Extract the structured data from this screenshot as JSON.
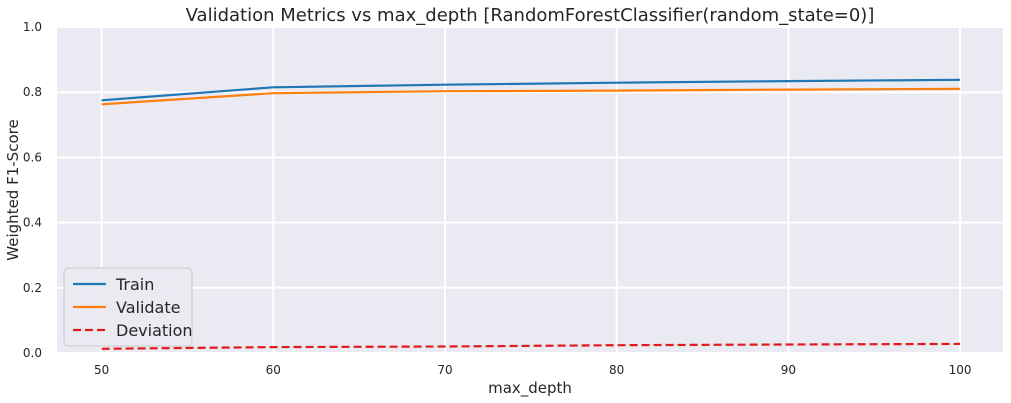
{
  "chart_data": {
    "type": "line",
    "title": "Validation Metrics vs max_depth [RandomForestClassifier(random_state=0)]",
    "xlabel": "max_depth",
    "ylabel": "Weighted F1-Score",
    "x": [
      50,
      60,
      70,
      80,
      90,
      100
    ],
    "xticks": [
      50,
      60,
      70,
      80,
      90,
      100
    ],
    "yticks": [
      0.0,
      0.2,
      0.4,
      0.6,
      0.8,
      1.0
    ],
    "xlim": [
      47.4,
      102.5
    ],
    "ylim": [
      0,
      1
    ],
    "grid": true,
    "legend_position": "lower-left",
    "series": [
      {
        "name": "Train",
        "color": "#1f77b4",
        "dash": "solid",
        "values": [
          0.775,
          0.815,
          0.823,
          0.829,
          0.834,
          0.838
        ]
      },
      {
        "name": "Validate",
        "color": "#ff7f0e",
        "dash": "solid",
        "values": [
          0.763,
          0.797,
          0.803,
          0.805,
          0.808,
          0.81
        ]
      },
      {
        "name": "Deviation",
        "color": "#e31a1c",
        "dash": "dashed",
        "values": [
          0.013,
          0.018,
          0.02,
          0.024,
          0.026,
          0.028
        ]
      }
    ]
  }
}
